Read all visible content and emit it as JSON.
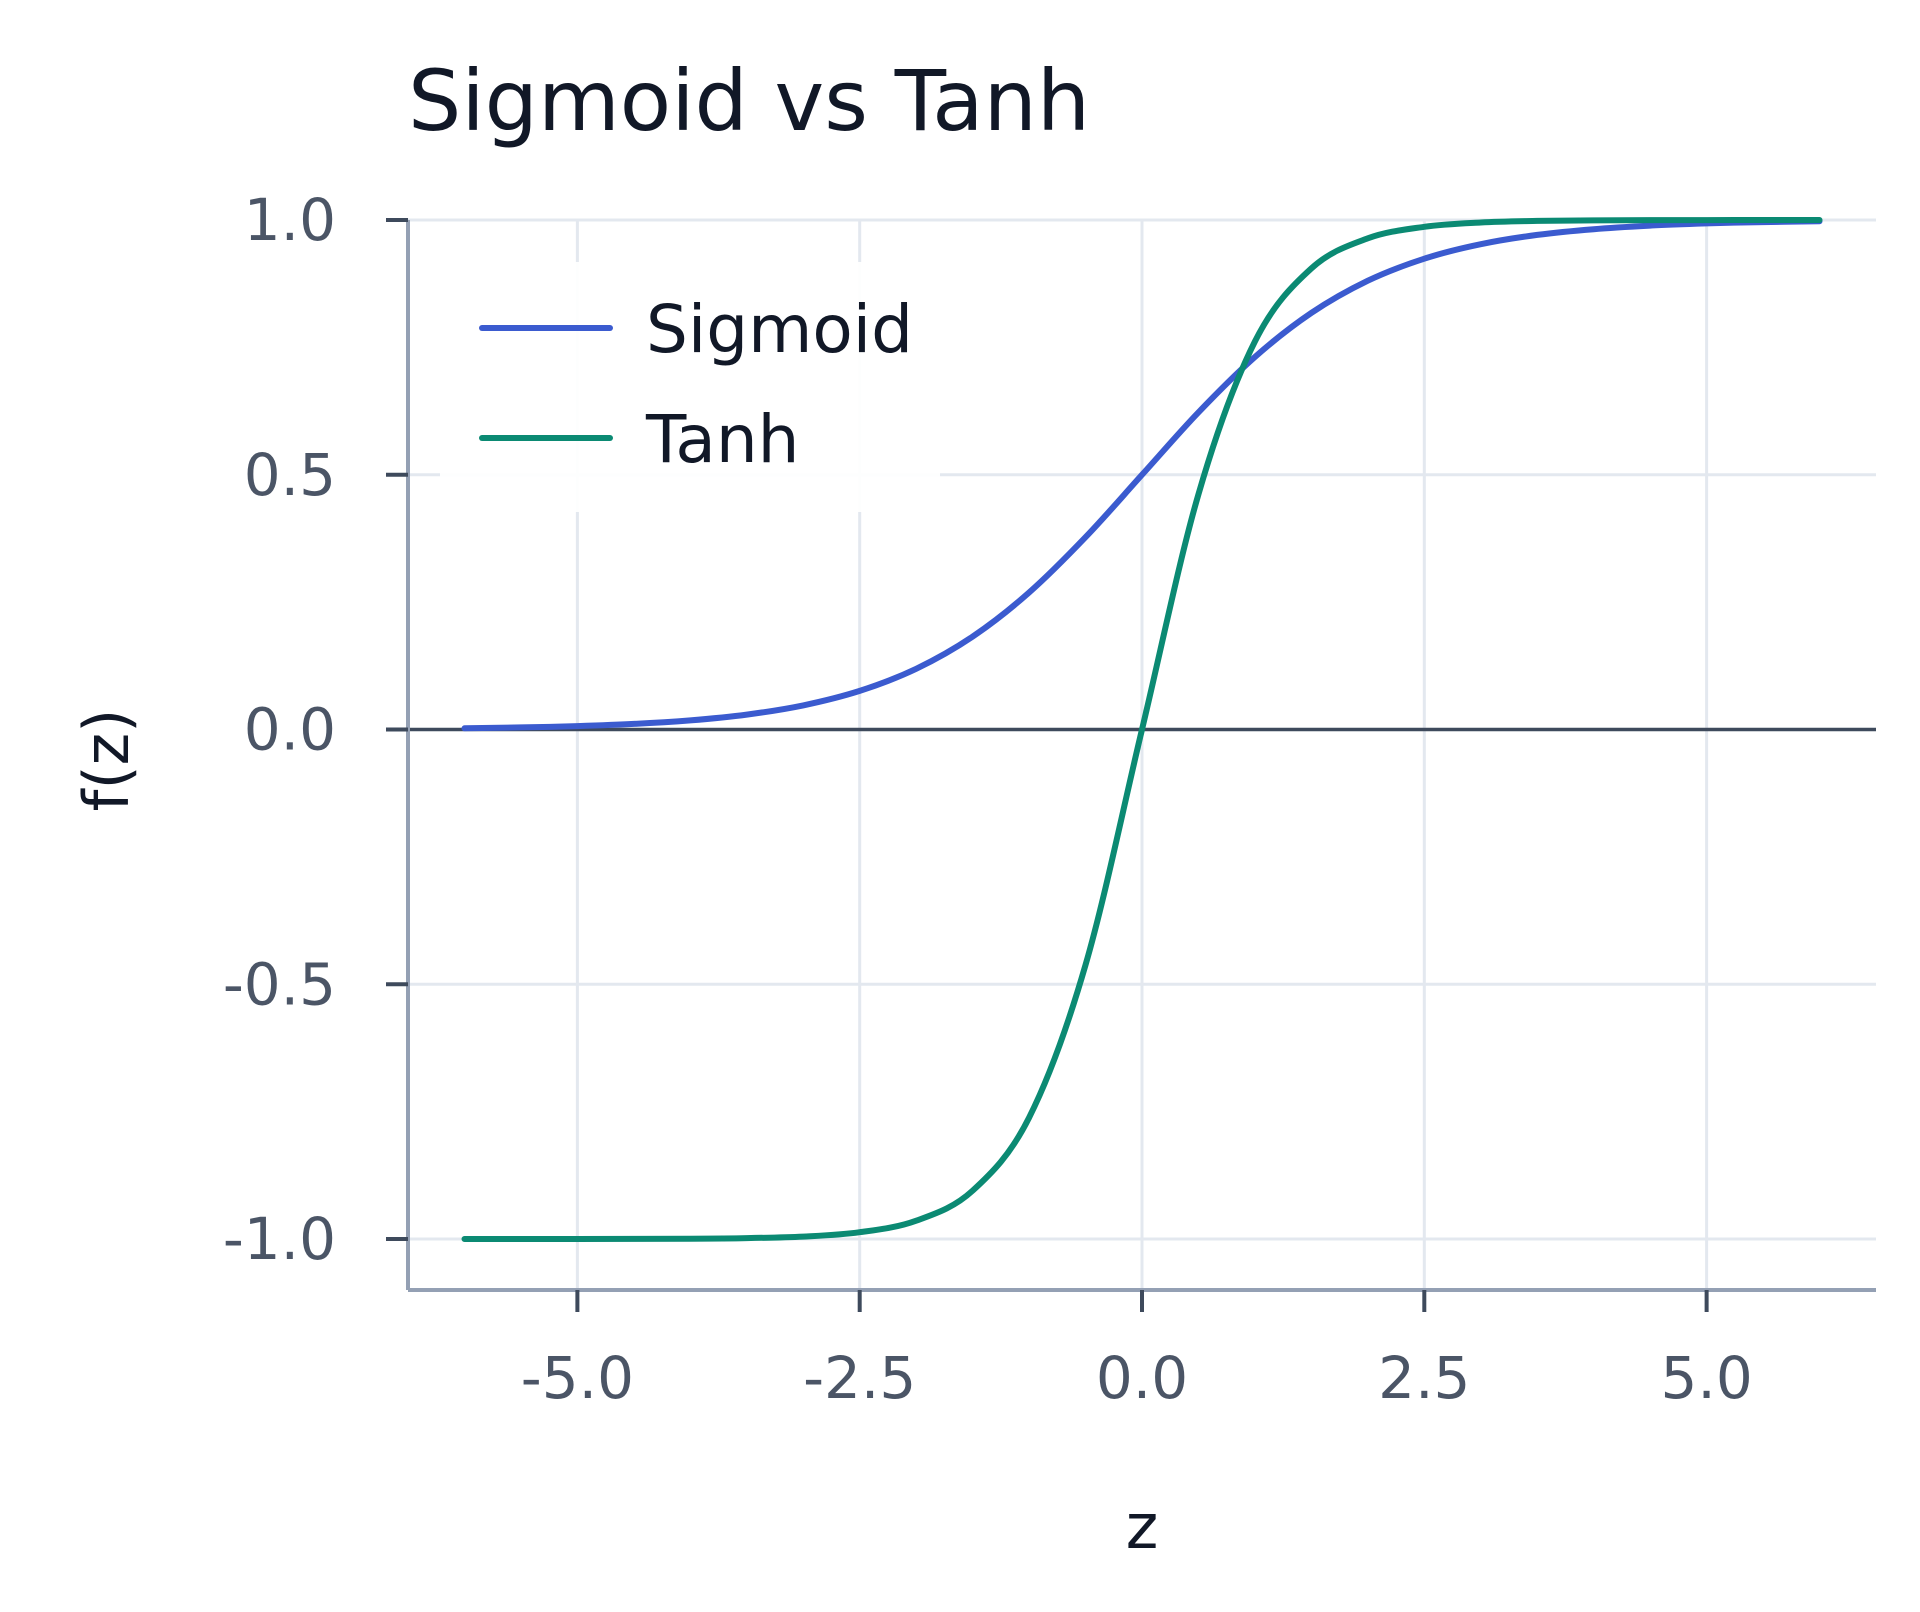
{
  "chart_data": {
    "type": "line",
    "title": "Sigmoid vs Tanh",
    "xlabel": "z",
    "ylabel": "f(z)",
    "xlim": [
      -6.5,
      6.5
    ],
    "ylim": [
      -1.1,
      1.0
    ],
    "x_ticks": [
      -5.0,
      -2.5,
      0.0,
      2.5,
      5.0
    ],
    "x_tick_labels": [
      "-5.0",
      "-2.5",
      "0.0",
      "2.5",
      "5.0"
    ],
    "y_ticks": [
      -1.0,
      -0.5,
      0.0,
      0.5,
      1.0
    ],
    "y_tick_labels": [
      "-1.0",
      "-0.5",
      "0.0",
      "0.5",
      "1.0"
    ],
    "grid": true,
    "zero_line": true,
    "legend": "top-left",
    "x": [
      -6.0,
      -5.5,
      -5.0,
      -4.5,
      -4.0,
      -3.5,
      -3.0,
      -2.5,
      -2.0,
      -1.5,
      -1.0,
      -0.5,
      0.0,
      0.5,
      1.0,
      1.5,
      2.0,
      2.5,
      3.0,
      3.5,
      4.0,
      4.5,
      5.0,
      5.5,
      6.0
    ],
    "series": [
      {
        "name": "Sigmoid",
        "color": "#3b5bcf",
        "values": [
          0.0025,
          0.0041,
          0.0067,
          0.011,
          0.018,
          0.0293,
          0.0474,
          0.0759,
          0.1192,
          0.1824,
          0.2689,
          0.3775,
          0.5,
          0.6225,
          0.7311,
          0.8176,
          0.8808,
          0.9241,
          0.9526,
          0.9707,
          0.982,
          0.989,
          0.9933,
          0.9959,
          0.9975
        ]
      },
      {
        "name": "Tanh",
        "color": "#0b8a73",
        "values": [
          -1.0,
          -1.0,
          -0.9999,
          -0.9998,
          -0.9993,
          -0.9982,
          -0.9951,
          -0.9866,
          -0.964,
          -0.9051,
          -0.7616,
          -0.4621,
          0.0,
          0.4621,
          0.7616,
          0.9051,
          0.964,
          0.9866,
          0.9951,
          0.9982,
          0.9993,
          0.9998,
          0.9999,
          1.0,
          1.0
        ]
      }
    ]
  }
}
